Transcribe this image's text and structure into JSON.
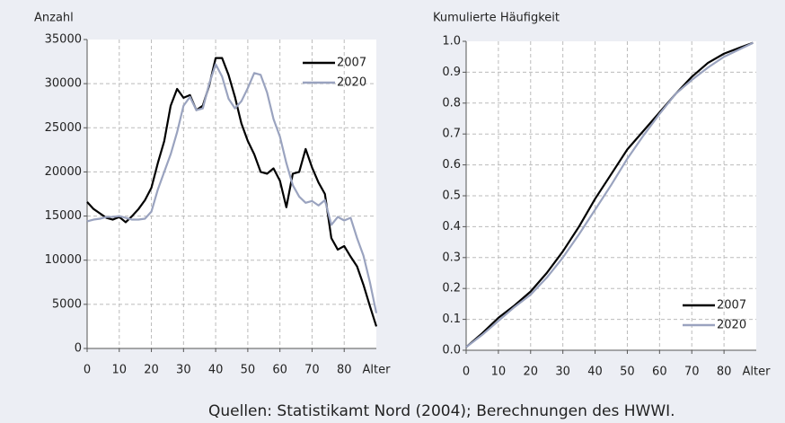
{
  "chart_data": [
    {
      "type": "line",
      "y_label": "Anzahl",
      "x_label": "Alter",
      "grid": true,
      "legend": "upper right",
      "xlim": [
        0,
        90
      ],
      "xticks": [
        0,
        10,
        20,
        30,
        40,
        50,
        60,
        70,
        80
      ],
      "ylim": [
        0,
        35000
      ],
      "yticks": [
        0,
        5000,
        10000,
        15000,
        20000,
        25000,
        30000,
        35000
      ],
      "x": [
        0,
        2,
        4,
        6,
        8,
        10,
        12,
        14,
        16,
        18,
        20,
        22,
        24,
        26,
        28,
        30,
        32,
        34,
        36,
        38,
        40,
        42,
        44,
        46,
        48,
        50,
        52,
        54,
        56,
        58,
        60,
        62,
        64,
        66,
        68,
        70,
        72,
        74,
        76,
        78,
        80,
        82,
        84,
        86,
        88,
        90
      ],
      "series": [
        {
          "name": "2007",
          "color": "#000000",
          "values": [
            16600,
            15800,
            15300,
            14800,
            14600,
            14900,
            14300,
            15000,
            15800,
            16800,
            18200,
            21000,
            23500,
            27500,
            29400,
            28400,
            28700,
            27000,
            27500,
            29800,
            32900,
            32900,
            31000,
            28500,
            25500,
            23500,
            22000,
            20000,
            19800,
            20400,
            19000,
            16000,
            19800,
            20000,
            22600,
            20500,
            18800,
            17500,
            12500,
            11200,
            11600,
            10400,
            9300,
            7200,
            4800,
            2500
          ]
        },
        {
          "name": "2020",
          "color": "#9aa3bf",
          "values": [
            14400,
            14600,
            14700,
            14900,
            14900,
            15000,
            14800,
            14600,
            14600,
            14700,
            15500,
            18000,
            20000,
            22000,
            24500,
            27500,
            28500,
            27000,
            27200,
            30000,
            32200,
            30800,
            28300,
            27200,
            28000,
            29500,
            31200,
            31000,
            29000,
            26000,
            24000,
            21000,
            18500,
            17200,
            16500,
            16700,
            16200,
            16800,
            14000,
            14900,
            14500,
            14800,
            12500,
            10500,
            7500,
            4000
          ]
        }
      ]
    },
    {
      "type": "line",
      "y_label": "Kumulierte Häufigkeit",
      "x_label": "Alter",
      "grid": true,
      "legend": "lower right",
      "xlim": [
        0,
        90
      ],
      "xticks": [
        0,
        10,
        20,
        30,
        40,
        50,
        60,
        70,
        80
      ],
      "ylim": [
        0,
        1
      ],
      "yticks": [
        {
          "value": 0,
          "label": "0.0"
        },
        0.1,
        0.2,
        0.3,
        0.4,
        0.5,
        0.6,
        0.7,
        0.8,
        0.9,
        {
          "value": 1,
          "label": "1.0"
        }
      ],
      "x": [
        0,
        5,
        10,
        15,
        20,
        25,
        30,
        35,
        40,
        45,
        50,
        55,
        60,
        65,
        70,
        75,
        80,
        85,
        89
      ],
      "series": [
        {
          "name": "2007",
          "color": "#000000",
          "values": [
            0.01,
            0.055,
            0.105,
            0.145,
            0.19,
            0.25,
            0.32,
            0.4,
            0.49,
            0.57,
            0.65,
            0.71,
            0.77,
            0.83,
            0.885,
            0.93,
            0.96,
            0.98,
            0.995
          ]
        },
        {
          "name": "2020",
          "color": "#9aa3bf",
          "values": [
            0.01,
            0.05,
            0.095,
            0.14,
            0.18,
            0.235,
            0.3,
            0.375,
            0.455,
            0.535,
            0.62,
            0.695,
            0.765,
            0.83,
            0.875,
            0.915,
            0.95,
            0.975,
            0.995
          ]
        }
      ]
    }
  ],
  "source": "Quellen: Statistikamt Nord (2004); Berechnungen des HWWI."
}
